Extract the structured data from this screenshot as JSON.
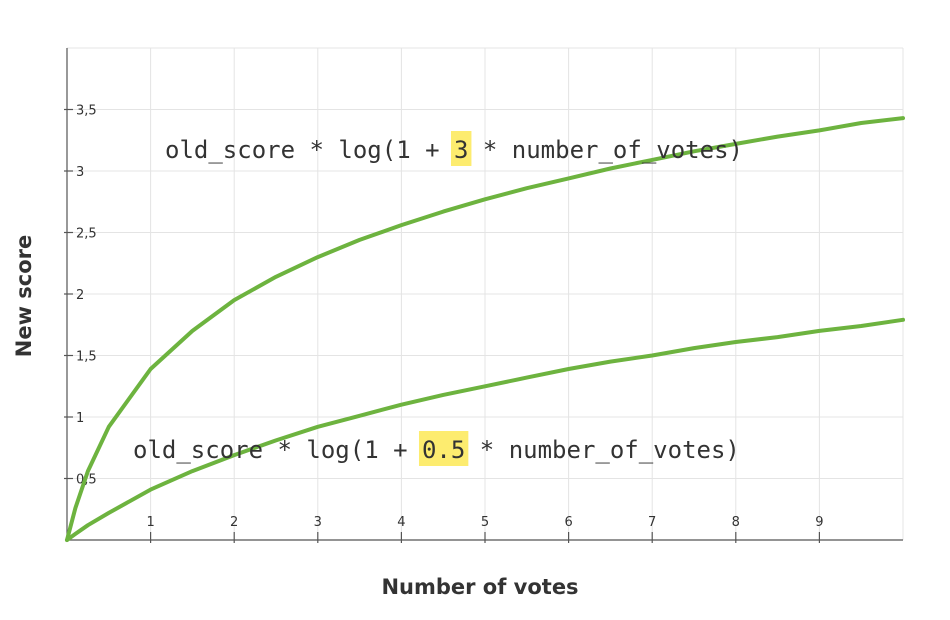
{
  "chart_data": {
    "type": "line",
    "xlabel": "Number of votes",
    "ylabel": "New score",
    "xlim": [
      0,
      10
    ],
    "ylim": [
      0,
      3.5
    ],
    "x_ticks": [
      1,
      2,
      3,
      4,
      5,
      6,
      7,
      8,
      9
    ],
    "x_tick_labels": [
      "1",
      "2",
      "3",
      "4",
      "5",
      "6",
      "7",
      "8",
      "9"
    ],
    "y_ticks": [
      0.5,
      1,
      1.5,
      2,
      2.5,
      3,
      3.5
    ],
    "y_tick_labels": [
      "0,5",
      "1",
      "1,5",
      "2",
      "2,5",
      "3",
      "3,5"
    ],
    "grid": true,
    "series_color": "#6db33f",
    "highlight_color": "#fdec6f",
    "x": [
      0,
      0.1,
      0.25,
      0.5,
      1,
      1.5,
      2,
      2.5,
      3,
      3.5,
      4,
      4.5,
      5,
      5.5,
      6,
      6.5,
      7,
      7.5,
      8,
      8.5,
      9,
      9.5,
      10
    ],
    "series": [
      {
        "values": [
          0,
          0.26,
          0.56,
          0.92,
          1.39,
          1.7,
          1.95,
          2.14,
          2.3,
          2.44,
          2.56,
          2.67,
          2.77,
          2.86,
          2.94,
          3.02,
          3.09,
          3.16,
          3.22,
          3.28,
          3.33,
          3.39,
          3.43
        ],
        "annotation": {
          "prefix": "old_score * log(1 + ",
          "highlight": "3",
          "suffix": " * number_of_votes)"
        }
      },
      {
        "values": [
          0,
          0.05,
          0.12,
          0.22,
          0.41,
          0.56,
          0.69,
          0.81,
          0.92,
          1.01,
          1.1,
          1.18,
          1.25,
          1.32,
          1.39,
          1.45,
          1.5,
          1.56,
          1.61,
          1.65,
          1.7,
          1.74,
          1.79
        ],
        "annotation": {
          "prefix": "old_score * log(1 + ",
          "highlight": "0.5",
          "suffix": " * number_of_votes)"
        }
      }
    ]
  }
}
